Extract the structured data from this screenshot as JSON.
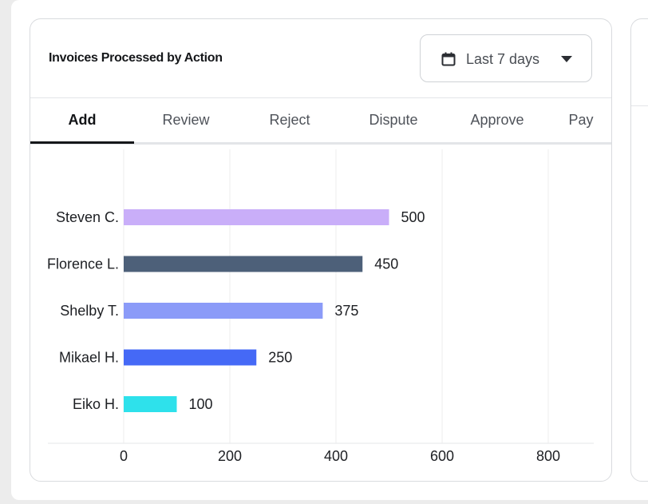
{
  "card": {
    "title": "Invoices Processed by Action",
    "date_range": {
      "label": "Last 7 days",
      "icon": "calendar-icon",
      "caret_icon": "caret-down-icon"
    }
  },
  "tabs": [
    {
      "label": "Add",
      "active": true
    },
    {
      "label": "Review",
      "active": false
    },
    {
      "label": "Reject",
      "active": false
    },
    {
      "label": "Dispute",
      "active": false
    },
    {
      "label": "Approve",
      "active": false
    },
    {
      "label": "Pay",
      "active": false
    }
  ],
  "chart_data": {
    "type": "bar",
    "orientation": "horizontal",
    "categories": [
      "Steven C.",
      "Florence L.",
      "Shelby T.",
      "Mikael H.",
      "Eiko H."
    ],
    "values": [
      500,
      450,
      375,
      250,
      100
    ],
    "colors": [
      "#c9aef9",
      "#4d6079",
      "#8b9bf8",
      "#4569f6",
      "#2ee1eb"
    ],
    "xticks": [
      0,
      200,
      400,
      600,
      800
    ],
    "xlim": [
      0,
      800
    ],
    "grid": "vertical",
    "data_labels": true
  }
}
